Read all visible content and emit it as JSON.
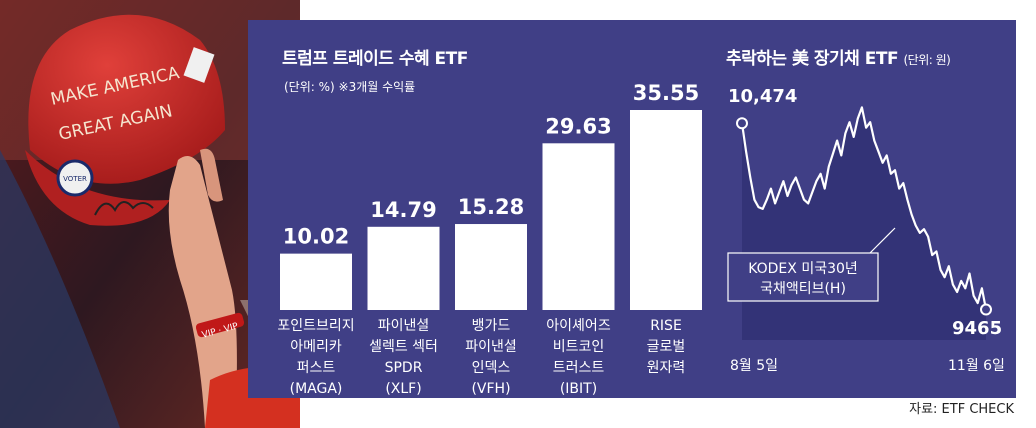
{
  "photo": {
    "hat_text_1": "MAKE AMERICA",
    "hat_text_2": "GREAT AGAIN",
    "badge_text": "VOTER",
    "wristband_text": "VIP · VIP"
  },
  "chart_data": [
    {
      "type": "bar",
      "title": "트럼프 트레이드 수혜 ETF",
      "subtitle": "(단위: %)  ※3개월 수익률",
      "categories": [
        [
          "포인트브리지",
          "아메리카",
          "퍼스트",
          "(MAGA)"
        ],
        [
          "파이낸셜",
          "셀렉트 섹터",
          "SPDR",
          "(XLF)"
        ],
        [
          "뱅가드",
          "파이낸셜",
          "인덱스",
          "(VFH)"
        ],
        [
          "아이셰어즈",
          "비트코인",
          "트러스트",
          "(IBIT)"
        ],
        [
          "RISE",
          "글로벌",
          "원자력"
        ]
      ],
      "values": [
        10.02,
        14.79,
        15.28,
        29.63,
        35.55
      ],
      "value_labels": [
        "10.02",
        "14.79",
        "15.28",
        "29.63",
        "35.55"
      ],
      "ylim": [
        0,
        40
      ],
      "bar_color": "#ffffff",
      "grid": false
    },
    {
      "type": "area",
      "title": "추락하는 美 장기채 ETF",
      "title_unit": "(단위: 원)",
      "series_label": [
        "KODEX 미국30년",
        "국채액티브(H)"
      ],
      "x_start_label": "8월 5일",
      "x_end_label": "11월 6일",
      "start_value": 10474,
      "end_value": 9465,
      "start_label": "10,474",
      "end_label": "9465",
      "ylim": [
        9300,
        10600
      ],
      "values": [
        10474,
        10320,
        10180,
        10060,
        10020,
        10010,
        10060,
        10120,
        10040,
        10100,
        10160,
        10080,
        10140,
        10180,
        10120,
        10060,
        10040,
        10100,
        10160,
        10200,
        10120,
        10240,
        10310,
        10380,
        10300,
        10420,
        10480,
        10400,
        10500,
        10560,
        10450,
        10480,
        10380,
        10320,
        10260,
        10300,
        10200,
        10220,
        10120,
        10150,
        10060,
        9980,
        9920,
        9880,
        9900,
        9860,
        9760,
        9780,
        9680,
        9640,
        9700,
        9600,
        9560,
        9620,
        9580,
        9660,
        9540,
        9500,
        9580,
        9465
      ],
      "fill_color": "#333377",
      "line_color": "#ffffff",
      "grid": false
    }
  ],
  "source": "자료: ETF CHECK"
}
